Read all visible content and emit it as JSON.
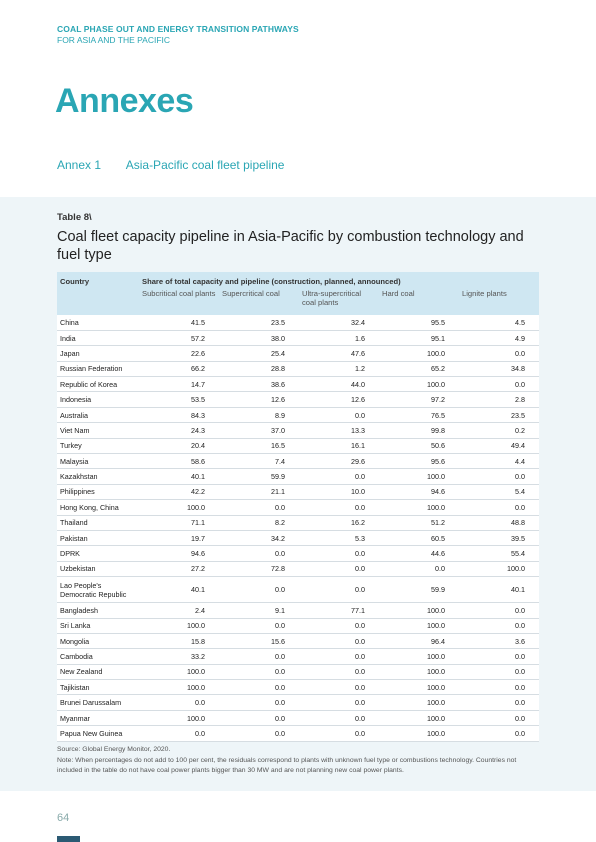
{
  "header": {
    "line1": "COAL PHASE OUT AND ENERGY TRANSITION PATHWAYS",
    "line2": "FOR ASIA AND THE PACIFIC"
  },
  "title": "Annexes",
  "annex": {
    "number": "Annex 1",
    "title": "Asia-Pacific coal fleet pipeline"
  },
  "table": {
    "label": "Table 8\\",
    "caption": "Coal fleet capacity pipeline in Asia-Pacific by combustion technology and fuel type",
    "header_country": "Country",
    "header_group": "Share of total capacity and pipeline (construction, planned, announced)",
    "subheaders": [
      "Subcritical coal plants",
      "Supercritical coal",
      "Ultra-supercritical coal plants",
      "Hard coal",
      "Lignite plants"
    ],
    "rows": [
      {
        "country": "China",
        "values": [
          "41.5",
          "23.5",
          "32.4",
          "95.5",
          "4.5"
        ]
      },
      {
        "country": "India",
        "values": [
          "57.2",
          "38.0",
          "1.6",
          "95.1",
          "4.9"
        ]
      },
      {
        "country": "Japan",
        "values": [
          "22.6",
          "25.4",
          "47.6",
          "100.0",
          "0.0"
        ]
      },
      {
        "country": "Russian Federation",
        "values": [
          "66.2",
          "28.8",
          "1.2",
          "65.2",
          "34.8"
        ]
      },
      {
        "country": "Republic of Korea",
        "values": [
          "14.7",
          "38.6",
          "44.0",
          "100.0",
          "0.0"
        ]
      },
      {
        "country": "Indonesia",
        "values": [
          "53.5",
          "12.6",
          "12.6",
          "97.2",
          "2.8"
        ]
      },
      {
        "country": "Australia",
        "values": [
          "84.3",
          "8.9",
          "0.0",
          "76.5",
          "23.5"
        ]
      },
      {
        "country": "Viet Nam",
        "values": [
          "24.3",
          "37.0",
          "13.3",
          "99.8",
          "0.2"
        ]
      },
      {
        "country": "Turkey",
        "values": [
          "20.4",
          "16.5",
          "16.1",
          "50.6",
          "49.4"
        ]
      },
      {
        "country": "Malaysia",
        "values": [
          "58.6",
          "7.4",
          "29.6",
          "95.6",
          "4.4"
        ]
      },
      {
        "country": "Kazakhstan",
        "values": [
          "40.1",
          "59.9",
          "0.0",
          "100.0",
          "0.0"
        ]
      },
      {
        "country": "Philippines",
        "values": [
          "42.2",
          "21.1",
          "10.0",
          "94.6",
          "5.4"
        ]
      },
      {
        "country": "Hong Kong, China",
        "values": [
          "100.0",
          "0.0",
          "0.0",
          "100.0",
          "0.0"
        ]
      },
      {
        "country": "Thailand",
        "values": [
          "71.1",
          "8.2",
          "16.2",
          "51.2",
          "48.8"
        ]
      },
      {
        "country": "Pakistan",
        "values": [
          "19.7",
          "34.2",
          "5.3",
          "60.5",
          "39.5"
        ]
      },
      {
        "country": "DPRK",
        "values": [
          "94.6",
          "0.0",
          "0.0",
          "44.6",
          "55.4"
        ]
      },
      {
        "country": "Uzbekistan",
        "values": [
          "27.2",
          "72.8",
          "0.0",
          "0.0",
          "100.0"
        ]
      },
      {
        "country": "Lao People's Democratic Republic",
        "values": [
          "40.1",
          "0.0",
          "0.0",
          "59.9",
          "40.1"
        ]
      },
      {
        "country": "Bangladesh",
        "values": [
          "2.4",
          "9.1",
          "77.1",
          "100.0",
          "0.0"
        ]
      },
      {
        "country": "Sri Lanka",
        "values": [
          "100.0",
          "0.0",
          "0.0",
          "100.0",
          "0.0"
        ]
      },
      {
        "country": "Mongolia",
        "values": [
          "15.8",
          "15.6",
          "0.0",
          "96.4",
          "3.6"
        ]
      },
      {
        "country": "Cambodia",
        "values": [
          "33.2",
          "0.0",
          "0.0",
          "100.0",
          "0.0"
        ]
      },
      {
        "country": "New Zealand",
        "values": [
          "100.0",
          "0.0",
          "0.0",
          "100.0",
          "0.0"
        ]
      },
      {
        "country": "Tajikistan",
        "values": [
          "100.0",
          "0.0",
          "0.0",
          "100.0",
          "0.0"
        ]
      },
      {
        "country": "Brunei Darussalam",
        "values": [
          "0.0",
          "0.0",
          "0.0",
          "100.0",
          "0.0"
        ]
      },
      {
        "country": "Myanmar",
        "values": [
          "100.0",
          "0.0",
          "0.0",
          "100.0",
          "0.0"
        ]
      },
      {
        "country": "Papua New Guinea",
        "values": [
          "0.0",
          "0.0",
          "0.0",
          "100.0",
          "0.0"
        ]
      }
    ],
    "source": "Source:  Global Energy Monitor, 2020.",
    "note": "Note:  When percentages do not add to 100 per cent, the residuals correspond to plants with unknown fuel type or combustions technology. Countries not included in the table do not have coal power plants bigger than 30 MW and are not planning new coal power plants."
  },
  "page_number": "64",
  "colors": {
    "accent": "#2aa6b4",
    "panel": "#eef5f8",
    "table_header": "#cfe7f2",
    "footer_bar": "#2b5a73"
  }
}
